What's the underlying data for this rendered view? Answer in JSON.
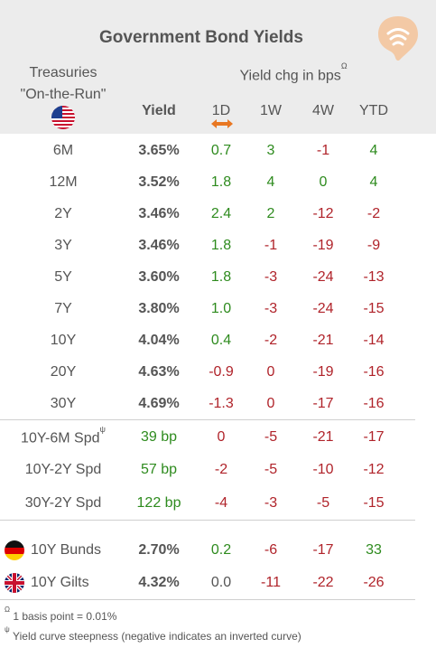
{
  "title": "Government Bond Yields",
  "header": {
    "treasuries_line1": "Treasuries",
    "treasuries_line2": "\"On-the-Run\"",
    "yield_chg": "Yield chg in bps",
    "yield_chg_mark": "Ω",
    "col_yield": "Yield",
    "col_1d": "1D",
    "col_1w": "1W",
    "col_4w": "4W",
    "col_ytd": "YTD"
  },
  "colors": {
    "positive": "#2e8b1e",
    "negative": "#b0232a",
    "accent": "#e87722",
    "header_bg": "#ececec"
  },
  "treasuries": [
    {
      "label": "6M",
      "yield": "3.65%",
      "d1": "0.7",
      "w1": "3",
      "w4": "-1",
      "ytd": "4",
      "s": [
        "pos",
        "pos",
        "neg",
        "pos"
      ]
    },
    {
      "label": "12M",
      "yield": "3.52%",
      "d1": "1.8",
      "w1": "4",
      "w4": "0",
      "ytd": "4",
      "s": [
        "pos",
        "pos",
        "zero-g",
        "pos"
      ]
    },
    {
      "label": "2Y",
      "yield": "3.46%",
      "d1": "2.4",
      "w1": "2",
      "w4": "-12",
      "ytd": "-2",
      "s": [
        "pos",
        "pos",
        "neg",
        "neg"
      ]
    },
    {
      "label": "3Y",
      "yield": "3.46%",
      "d1": "1.8",
      "w1": "-1",
      "w4": "-19",
      "ytd": "-9",
      "s": [
        "pos",
        "neg",
        "neg",
        "neg"
      ]
    },
    {
      "label": "5Y",
      "yield": "3.60%",
      "d1": "1.8",
      "w1": "-3",
      "w4": "-24",
      "ytd": "-13",
      "s": [
        "pos",
        "neg",
        "neg",
        "neg"
      ]
    },
    {
      "label": "7Y",
      "yield": "3.80%",
      "d1": "1.0",
      "w1": "-3",
      "w4": "-24",
      "ytd": "-15",
      "s": [
        "pos",
        "neg",
        "neg",
        "neg"
      ]
    },
    {
      "label": "10Y",
      "yield": "4.04%",
      "d1": "0.4",
      "w1": "-2",
      "w4": "-21",
      "ytd": "-14",
      "s": [
        "pos",
        "neg",
        "neg",
        "neg"
      ]
    },
    {
      "label": "20Y",
      "yield": "4.63%",
      "d1": "-0.9",
      "w1": "0",
      "w4": "-19",
      "ytd": "-16",
      "s": [
        "neg",
        "neg",
        "neg",
        "neg"
      ]
    },
    {
      "label": "30Y",
      "yield": "4.69%",
      "d1": "-1.3",
      "w1": "0",
      "w4": "-17",
      "ytd": "-16",
      "s": [
        "neg",
        "neg",
        "neg",
        "neg"
      ]
    }
  ],
  "spreads": [
    {
      "label": "10Y-6M Spd",
      "mark": "ψ",
      "yield": "39 bp",
      "d1": "0",
      "w1": "-5",
      "w4": "-21",
      "ytd": "-17",
      "s": [
        "neg",
        "neg",
        "neg",
        "neg"
      ]
    },
    {
      "label": "10Y-2Y Spd",
      "mark": "",
      "yield": "57 bp",
      "d1": "-2",
      "w1": "-5",
      "w4": "-10",
      "ytd": "-12",
      "s": [
        "neg",
        "neg",
        "neg",
        "neg"
      ]
    },
    {
      "label": "30Y-2Y Spd",
      "mark": "",
      "yield": "122 bp",
      "d1": "-4",
      "w1": "-3",
      "w4": "-5",
      "ytd": "-15",
      "s": [
        "neg",
        "neg",
        "neg",
        "neg"
      ]
    }
  ],
  "international": [
    {
      "label": "10Y Bunds",
      "flag": "germany-flag-icon",
      "yield": "2.70%",
      "d1": "0.2",
      "w1": "-6",
      "w4": "-17",
      "ytd": "33",
      "s": [
        "pos",
        "neg",
        "neg",
        "pos"
      ]
    },
    {
      "label": "10Y Gilts",
      "flag": "uk-flag-icon",
      "yield": "4.32%",
      "d1": "0.0",
      "w1": "-11",
      "w4": "-22",
      "ytd": "-26",
      "s": [
        "neg-grey",
        "neg",
        "neg",
        "neg"
      ]
    }
  ],
  "footnotes": {
    "f1_mark": "Ω",
    "f1_text": "1 basis point = 0.01%",
    "f2_mark": "ψ",
    "f2_text": "Yield curve steepness (negative indicates an inverted curve)"
  }
}
